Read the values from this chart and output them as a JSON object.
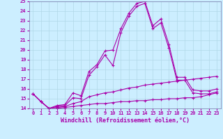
{
  "xlabel": "Windchill (Refroidissement éolien,°C)",
  "background_color": "#cceeff",
  "grid_color": "#b0d8e8",
  "line_color": "#aa00aa",
  "xlim": [
    -0.5,
    23.5
  ],
  "ylim": [
    14,
    25
  ],
  "xticks": [
    0,
    1,
    2,
    3,
    4,
    5,
    6,
    7,
    8,
    9,
    10,
    11,
    12,
    13,
    14,
    15,
    16,
    17,
    18,
    19,
    20,
    21,
    22,
    23
  ],
  "yticks": [
    14,
    15,
    16,
    17,
    18,
    19,
    20,
    21,
    22,
    23,
    24,
    25
  ],
  "series": [
    [
      15.5,
      14.7,
      14.0,
      14.3,
      14.4,
      15.6,
      15.3,
      17.8,
      18.5,
      19.9,
      20.0,
      22.2,
      23.8,
      24.8,
      25.0,
      22.5,
      23.2,
      20.6,
      17.2,
      17.2,
      15.9,
      15.8,
      15.8,
      16.0
    ],
    [
      15.5,
      14.7,
      14.0,
      14.2,
      14.3,
      15.1,
      15.0,
      17.4,
      18.3,
      19.5,
      18.4,
      21.8,
      23.5,
      24.5,
      24.8,
      22.2,
      22.8,
      20.2,
      16.9,
      16.9,
      15.6,
      15.5,
      15.5,
      15.7
    ],
    [
      15.5,
      14.7,
      14.0,
      14.1,
      14.2,
      14.5,
      14.7,
      15.2,
      15.4,
      15.6,
      15.7,
      15.9,
      16.1,
      16.2,
      16.4,
      16.5,
      16.6,
      16.7,
      16.8,
      16.9,
      17.0,
      17.1,
      17.2,
      17.3
    ],
    [
      15.5,
      14.7,
      14.0,
      14.0,
      14.1,
      14.2,
      14.3,
      14.4,
      14.5,
      14.5,
      14.6,
      14.7,
      14.7,
      14.8,
      14.8,
      14.9,
      14.9,
      15.0,
      15.0,
      15.1,
      15.1,
      15.2,
      15.4,
      15.6
    ]
  ],
  "xlabel_color": "#aa00aa",
  "xlabel_fontsize": 6,
  "tick_fontsize": 5,
  "spine_color": "#7777aa",
  "marker": "+",
  "markersize": 3,
  "linewidth": 0.8
}
